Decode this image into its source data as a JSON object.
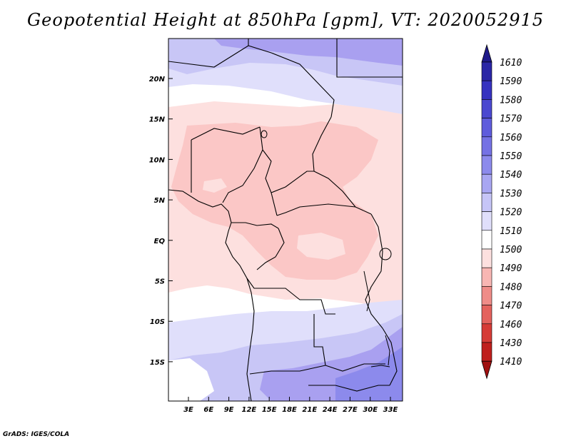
{
  "title": "Geopotential Height at 850hPa [gpm], VT: 2020052915",
  "footer": "GrADS: IGES/COLA",
  "map": {
    "lat_labels": [
      "20N",
      "15N",
      "10N",
      "5N",
      "EQ",
      "5S",
      "10S",
      "15S"
    ],
    "lon_labels": [
      "3E",
      "6E",
      "9E",
      "12E",
      "15E",
      "18E",
      "21E",
      "24E",
      "27E",
      "30E",
      "33E"
    ],
    "field_colors": {
      "above_1530": "#a9a0f0",
      "1520_1530": "#c8c6f6",
      "1510_1520": "#e0dffb",
      "1500_1510": "#ffffff",
      "1490_1500": "#fde0df",
      "1480_1490": "#fbc7c6"
    }
  },
  "colorbar": {
    "levels": [
      "1610",
      "1590",
      "1580",
      "1570",
      "1560",
      "1550",
      "1540",
      "1530",
      "1520",
      "1510",
      "1500",
      "1490",
      "1480",
      "1470",
      "1460",
      "1430",
      "1410"
    ],
    "colors": [
      "#1f1a8a",
      "#2a26a6",
      "#3632c0",
      "#4b48d0",
      "#5f5cdc",
      "#7572e4",
      "#8c8aec",
      "#a8a6f2",
      "#c6c5f7",
      "#e0dffb",
      "#ffffff",
      "#fde0df",
      "#f8b6b3",
      "#ef8c88",
      "#e4625d",
      "#d63b36",
      "#bf1f1d",
      "#a01010"
    ]
  }
}
